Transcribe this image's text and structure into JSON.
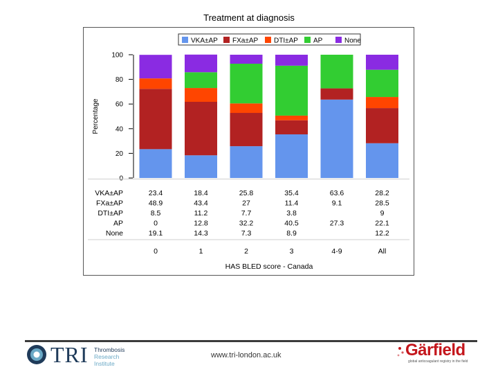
{
  "chart_data": {
    "type": "stacked_bar",
    "title": "Treatment at diagnosis",
    "xlabel": "HAS BLED score - Canada",
    "ylabel": "Percentage",
    "ylim": [
      0,
      100
    ],
    "yticks": [
      "0",
      "20",
      "40",
      "60",
      "80",
      "100"
    ],
    "categories": [
      "0",
      "1",
      "2",
      "3",
      "4-9",
      "All"
    ],
    "series": [
      {
        "name": "VKA±AP",
        "color": "#6495ed",
        "values": [
          23.4,
          18.4,
          25.8,
          35.4,
          63.6,
          28.2
        ],
        "labels": [
          "23.4",
          "18.4",
          "25.8",
          "35.4",
          "63.6",
          "28.2"
        ]
      },
      {
        "name": "FXa±AP",
        "color": "#b22222",
        "values": [
          48.9,
          43.4,
          27,
          11.4,
          9.1,
          28.5
        ],
        "labels": [
          "48.9",
          "43.4",
          "27",
          "11.4",
          "9.1",
          "28.5"
        ]
      },
      {
        "name": "DTI±AP",
        "color": "#ff4500",
        "values": [
          8.5,
          11.2,
          7.7,
          3.8,
          0,
          9
        ],
        "labels": [
          "8.5",
          "11.2",
          "7.7",
          "3.8",
          "",
          "9"
        ]
      },
      {
        "name": "AP",
        "color": "#32cd32",
        "values": [
          0,
          12.8,
          32.2,
          40.5,
          27.3,
          22.1
        ],
        "labels": [
          "0",
          "12.8",
          "32.2",
          "40.5",
          "27.3",
          "22.1"
        ]
      },
      {
        "name": "None",
        "color": "#8a2be2",
        "values": [
          19.1,
          14.3,
          7.3,
          8.9,
          0,
          12.2
        ],
        "labels": [
          "19.1",
          "14.3",
          "7.3",
          "8.9",
          "",
          "12.2"
        ]
      }
    ],
    "legend_position": "top",
    "table_row_labels": [
      "VKA±AP",
      "FXa±AP",
      "DTI±AP",
      "AP",
      "None"
    ]
  },
  "footer": {
    "logo_left_text": "TRI",
    "logo_left_sub": [
      "Thrombosis",
      "Research",
      "Institute"
    ],
    "website": "www.tri-london.ac.uk",
    "logo_right_text": "Gärfield",
    "logo_right_tagline": "global anticoagulant registry in the field"
  }
}
